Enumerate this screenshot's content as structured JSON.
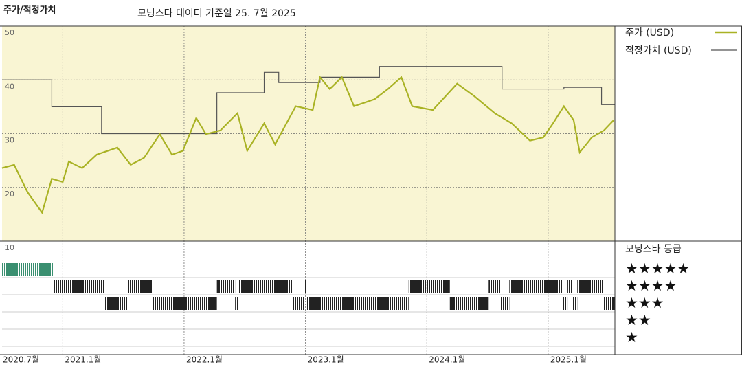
{
  "chart_data": {
    "type": "line",
    "title": "주가/적정가치",
    "subtitle": "모닝스타 데이터 기준일 25. 7월 2025",
    "xlim": [
      2020.5,
      2025.55
    ],
    "xticks": [
      {
        "value": 2020.5,
        "label": "2020.7월"
      },
      {
        "value": 2021,
        "label": "2021.1월"
      },
      {
        "value": 2022,
        "label": "2022.1월"
      },
      {
        "value": 2023,
        "label": "2023.1월"
      },
      {
        "value": 2024,
        "label": "2024.1월"
      },
      {
        "value": 2025,
        "label": "2025.1월"
      }
    ],
    "ylim": [
      10,
      50
    ],
    "yticks": [
      10,
      20,
      30,
      40,
      50
    ],
    "grid": true,
    "background": "#f9f5d3",
    "series": [
      {
        "name": "주가 (USD)",
        "color": "#a9b224",
        "x": [
          2020.5,
          2020.6,
          2020.71,
          2020.83,
          2020.91,
          2021.0,
          2021.05,
          2021.16,
          2021.28,
          2021.45,
          2021.56,
          2021.67,
          2021.8,
          2021.9,
          2021.99,
          2022.1,
          2022.18,
          2022.3,
          2022.44,
          2022.52,
          2022.66,
          2022.75,
          2022.92,
          2023.06,
          2023.12,
          2023.2,
          2023.3,
          2023.4,
          2023.57,
          2023.68,
          2023.79,
          2023.88,
          2024.05,
          2024.25,
          2024.39,
          2024.56,
          2024.7,
          2024.85,
          2024.96,
          2025.04,
          2025.13,
          2025.21,
          2025.26,
          2025.36,
          2025.46,
          2025.54
        ],
        "values": [
          23.6,
          24.2,
          19.1,
          15.3,
          21.6,
          21.0,
          24.8,
          23.6,
          26.1,
          27.4,
          24.2,
          25.5,
          29.9,
          26.1,
          26.8,
          32.9,
          29.9,
          30.6,
          33.8,
          26.8,
          31.9,
          28.0,
          35.1,
          34.4,
          40.5,
          38.3,
          40.5,
          35.1,
          36.4,
          38.3,
          40.5,
          35.1,
          34.4,
          39.3,
          37.0,
          33.8,
          31.9,
          28.7,
          29.3,
          31.9,
          35.1,
          32.5,
          26.5,
          29.3,
          30.6,
          32.5
        ]
      },
      {
        "name": "적정가치 (USD)",
        "color": "#555555",
        "step": "post",
        "x": [
          2020.5,
          2020.91,
          2021.32,
          2022.27,
          2022.66,
          2022.78,
          2023.12,
          2023.61,
          2024.62,
          2025.13,
          2025.44,
          2025.55
        ],
        "values": [
          40.0,
          35.0,
          30.0,
          37.6,
          41.4,
          39.5,
          40.5,
          42.5,
          38.3,
          38.6,
          35.4,
          35.4
        ]
      }
    ],
    "rating_title": "모닝스타 등급",
    "rating_rows": [
      {
        "value": 5,
        "label": "★★★★★"
      },
      {
        "value": 4,
        "label": "★★★★"
      },
      {
        "value": 3,
        "label": "★★★"
      },
      {
        "value": 2,
        "label": "★★"
      },
      {
        "value": 1,
        "label": "★"
      }
    ],
    "rating_colors": {
      "5": "#3a8f70",
      "4": "#222222",
      "3": "#222222"
    },
    "rating_periods": {
      "start": [
        2020.5,
        2020.92,
        2021.34,
        2021.54,
        2021.74,
        2022.27,
        2022.42,
        2022.45,
        2022.89,
        2022.99,
        2023.01,
        2023.85,
        2024.19,
        2024.51,
        2024.61,
        2024.68,
        2025.12,
        2025.16,
        2025.2,
        2025.24,
        2025.45
      ],
      "rating": [
        5,
        4,
        3,
        4,
        3,
        4,
        3,
        4,
        3,
        4,
        3,
        4,
        3,
        4,
        3,
        4,
        3,
        4,
        3,
        4,
        3
      ]
    }
  }
}
